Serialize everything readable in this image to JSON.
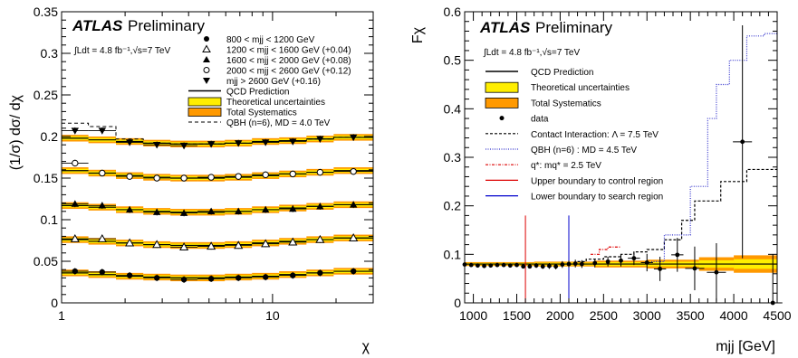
{
  "chart_data": [
    {
      "type": "scatter",
      "xscale": "log",
      "xlim": [
        1,
        30
      ],
      "ylim": [
        0,
        0.35
      ],
      "ylabel": "(1/σ) dσ/ dχ",
      "xlabel": "χ",
      "xticks": [
        {
          "v": 1,
          "label": "1"
        },
        {
          "v": 10,
          "label": "10"
        }
      ],
      "yticks": [
        "0",
        "0.05",
        "0.1",
        "0.15",
        "0.2",
        "0.25",
        "0.3",
        "0.35"
      ],
      "atlas_label": "ATLAS",
      "preliminary_label": "Preliminary",
      "lumi_text": "∫Ldt = 4.8 fb⁻¹,√s=7 TeV",
      "bin_edges": [
        1,
        1.34,
        1.81,
        2.44,
        3.28,
        4.41,
        5.94,
        7.99,
        10.75,
        14.48,
        19.49,
        30
      ],
      "legend": [
        {
          "marker": "filled-circle",
          "label": "800 < mjj < 1200 GeV"
        },
        {
          "marker": "open-triangle",
          "label": "1200 < mjj < 1600 GeV (+0.04)"
        },
        {
          "marker": "filled-triangle",
          "label": "1600 < mjj < 2000 GeV (+0.08)"
        },
        {
          "marker": "open-circle",
          "label": "2000 < mjj < 2600 GeV (+0.12)"
        },
        {
          "marker": "filled-down-triangle",
          "label": "mjj > 2600 GeV (+0.16)"
        },
        {
          "marker": "line",
          "label": "QCD Prediction"
        },
        {
          "marker": "yellow-box",
          "label": "Theoretical uncertainties"
        },
        {
          "marker": "orange-box",
          "label": "Total Systematics"
        },
        {
          "marker": "dashed",
          "label": "QBH (n=6), MD = 4.0 TeV"
        }
      ],
      "series": [
        {
          "marker": "filled-circle",
          "values": [
            0.038,
            0.037,
            0.033,
            0.03,
            0.028,
            0.029,
            0.03,
            0.031,
            0.033,
            0.036,
            0.038
          ]
        },
        {
          "marker": "open-triangle",
          "values": [
            0.077,
            0.077,
            0.072,
            0.07,
            0.067,
            0.068,
            0.069,
            0.071,
            0.073,
            0.076,
            0.078
          ]
        },
        {
          "marker": "filled-triangle",
          "values": [
            0.119,
            0.117,
            0.112,
            0.109,
            0.108,
            0.11,
            0.11,
            0.112,
            0.113,
            0.116,
            0.118
          ]
        },
        {
          "marker": "open-circle",
          "values": [
            0.168,
            0.156,
            0.152,
            0.15,
            0.15,
            0.151,
            0.152,
            0.154,
            0.155,
            0.157,
            0.158
          ]
        },
        {
          "marker": "filled-down-triangle",
          "values": [
            0.207,
            0.207,
            0.193,
            0.19,
            0.189,
            0.191,
            0.192,
            0.193,
            0.194,
            0.197,
            0.199
          ]
        }
      ],
      "qcd": [
        [
          0.036,
          0.034,
          0.032,
          0.031,
          0.03,
          0.03,
          0.031,
          0.032,
          0.034,
          0.036,
          0.038
        ],
        [
          0.076,
          0.074,
          0.072,
          0.07,
          0.069,
          0.069,
          0.07,
          0.072,
          0.074,
          0.076,
          0.078
        ],
        [
          0.117,
          0.115,
          0.112,
          0.11,
          0.109,
          0.109,
          0.11,
          0.112,
          0.114,
          0.116,
          0.118
        ],
        [
          0.159,
          0.156,
          0.153,
          0.151,
          0.15,
          0.15,
          0.151,
          0.153,
          0.155,
          0.157,
          0.159
        ],
        [
          0.198,
          0.196,
          0.194,
          0.192,
          0.191,
          0.191,
          0.192,
          0.194,
          0.195,
          0.197,
          0.199
        ]
      ],
      "qbh": [
        0.216,
        0.212,
        0.197,
        0.192,
        0.191,
        0.191,
        0.192,
        0.194,
        0.195,
        0.197,
        0.199
      ]
    },
    {
      "type": "scatter",
      "xlim": [
        900,
        4500
      ],
      "ylim": [
        0,
        0.6
      ],
      "ylabel": "Fχ",
      "xlabel": "mjj [GeV]",
      "xticks": [
        "1000",
        "1500",
        "2000",
        "2500",
        "3000",
        "3500",
        "4000",
        "4500"
      ],
      "yticks": [
        "0",
        "0.1",
        "0.2",
        "0.3",
        "0.4",
        "0.5",
        "0.6"
      ],
      "atlas_label": "ATLAS",
      "preliminary_label": "Preliminary",
      "lumi_text": "∫Ldt = 4.8 fb⁻¹,√s=7 TeV",
      "legend": [
        {
          "marker": "line",
          "label": "QCD Prediction"
        },
        {
          "marker": "yellow-box",
          "label": "Theoretical uncertainties"
        },
        {
          "marker": "orange-box",
          "label": "Total Systematics"
        },
        {
          "marker": "dot",
          "label": "data"
        },
        {
          "marker": "dashed-black",
          "label": "Contact Interaction: Λ = 7.5 TeV"
        },
        {
          "marker": "dotted-blue",
          "label": "QBH (n=6) : MD = 4.5 TeV"
        },
        {
          "marker": "dashdot-red",
          "label": "q*: mq* = 2.5 TeV"
        },
        {
          "marker": "red-line",
          "label": "Upper boundary to control region"
        },
        {
          "marker": "blue-line",
          "label": "Lower boundary to search region"
        }
      ],
      "data_x": [
        900,
        975,
        1050,
        1125,
        1200,
        1275,
        1350,
        1425,
        1500,
        1575,
        1650,
        1725,
        1800,
        1875,
        1950,
        2025,
        2100,
        2175,
        2250,
        2400,
        2550,
        2700,
        2850,
        3000,
        3150,
        3350,
        3550,
        3800,
        4100,
        4450
      ],
      "data_y": [
        0.079,
        0.078,
        0.077,
        0.076,
        0.077,
        0.078,
        0.078,
        0.077,
        0.078,
        0.075,
        0.075,
        0.077,
        0.075,
        0.076,
        0.075,
        0.079,
        0.08,
        0.081,
        0.08,
        0.082,
        0.085,
        0.087,
        0.092,
        0.083,
        0.07,
        0.099,
        0.071,
        0.063,
        0.332,
        0.0
      ],
      "data_err": [
        0.003,
        0.003,
        0.003,
        0.003,
        0.003,
        0.003,
        0.003,
        0.003,
        0.004,
        0.004,
        0.004,
        0.005,
        0.005,
        0.006,
        0.006,
        0.007,
        0.007,
        0.008,
        0.008,
        0.009,
        0.01,
        0.012,
        0.014,
        0.018,
        0.025,
        0.035,
        0.045,
        0.06,
        0.24,
        0.1
      ],
      "qcd_value": 0.08,
      "ci_steps": [
        [
          2300,
          0.085
        ],
        [
          2500,
          0.09
        ],
        [
          2700,
          0.095
        ],
        [
          2850,
          0.1
        ],
        [
          3000,
          0.105
        ],
        [
          3200,
          0.11
        ],
        [
          3400,
          0.13
        ],
        [
          3550,
          0.17
        ],
        [
          3850,
          0.21
        ],
        [
          4150,
          0.25
        ],
        [
          4400,
          0.275
        ],
        [
          4500,
          0.275
        ]
      ],
      "qbh_steps": [
        [
          3200,
          0.085
        ],
        [
          3500,
          0.14
        ],
        [
          3700,
          0.24
        ],
        [
          3800,
          0.38
        ],
        [
          3950,
          0.45
        ],
        [
          4150,
          0.5
        ],
        [
          4350,
          0.55
        ],
        [
          4500,
          0.555
        ]
      ],
      "qstar_steps": [
        [
          2450,
          0.1
        ],
        [
          2550,
          0.11
        ],
        [
          2700,
          0.115
        ]
      ],
      "control_boundary": 1600,
      "search_boundary": 2100
    }
  ]
}
